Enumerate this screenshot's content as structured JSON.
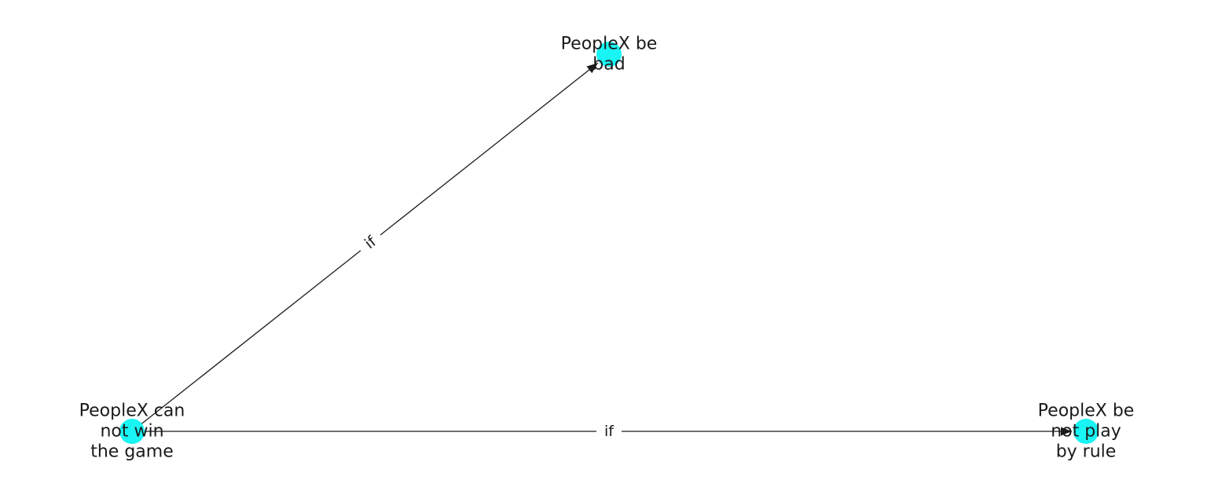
{
  "diagram": {
    "node_color": "#19f4f4",
    "edge_color": "#1a1a1a",
    "nodes": [
      {
        "id": "n1",
        "label_lines": [
          "PeopleX be",
          "bad"
        ]
      },
      {
        "id": "n2",
        "label_lines": [
          "PeopleX can",
          "not win",
          "the game"
        ]
      },
      {
        "id": "n3",
        "label_lines": [
          "PeopleX be",
          "not play",
          "by rule"
        ]
      }
    ],
    "edges": [
      {
        "id": "e1",
        "from": "n2",
        "to": "n1",
        "label": "if"
      },
      {
        "id": "e2",
        "from": "n2",
        "to": "n3",
        "label": "if"
      }
    ]
  }
}
